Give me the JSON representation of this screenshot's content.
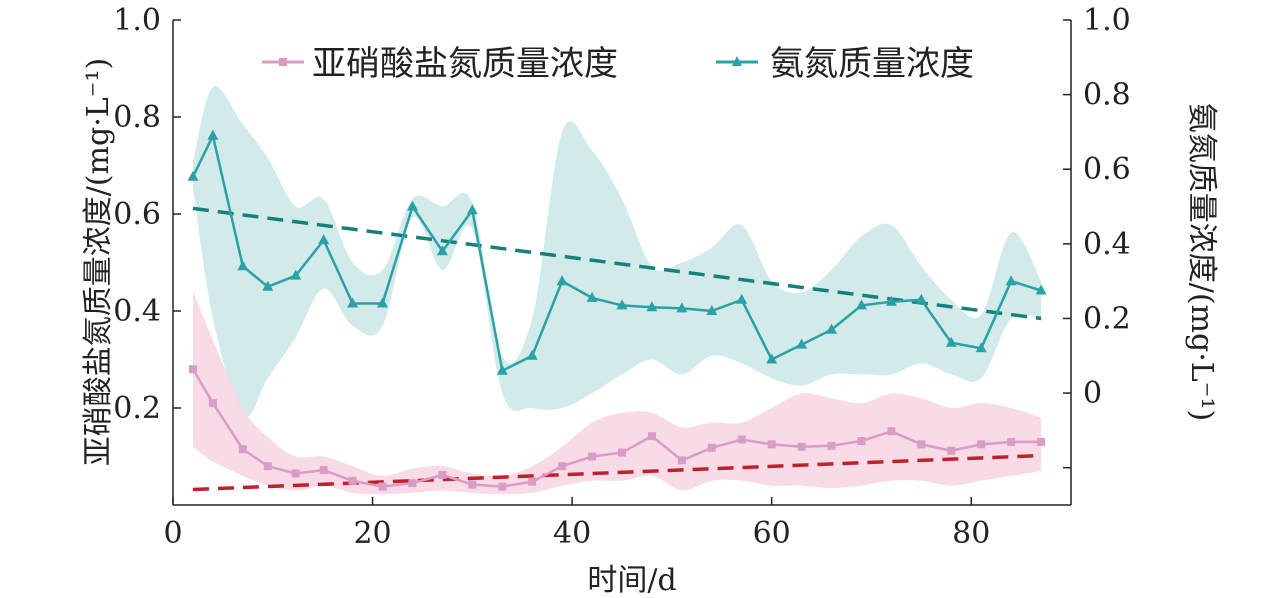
{
  "chart_data": {
    "type": "line",
    "xlabel": "时间/d",
    "ylabel_left": "亚硝酸盐氮质量浓度/(mg·L⁻¹)",
    "ylabel_right": "氨氮质量浓度/(mg·L⁻¹)",
    "xlim": [
      0,
      90
    ],
    "ylim_left": [
      0,
      1.0
    ],
    "ylim_right": [
      -0.3,
      1.0
    ],
    "x_ticks": [
      "0",
      "20",
      "40",
      "60",
      "80"
    ],
    "y_left_ticks": [
      "0.2",
      "0.4",
      "0.6",
      "0.8",
      "1.0"
    ],
    "y_right_ticks": [
      "0",
      "0.2",
      "0.4",
      "0.6",
      "0.8",
      "1.0"
    ],
    "legend_position": "top",
    "x": [
      2,
      4,
      7,
      9.5,
      12.3,
      15.1,
      18,
      21,
      24,
      27,
      30,
      33,
      36,
      39,
      42,
      45,
      48,
      51,
      54,
      57,
      60,
      63,
      66,
      69,
      72,
      75,
      78,
      81,
      84,
      87
    ],
    "series": [
      {
        "name": "亚硝酸盐氮质量浓度",
        "axis": "left",
        "color": "#d99cc4",
        "band_color": "#f8d7e6",
        "marker": "square",
        "values": [
          0.28,
          0.21,
          0.115,
          0.08,
          0.065,
          0.072,
          0.05,
          0.038,
          0.045,
          0.062,
          0.042,
          0.038,
          0.048,
          0.08,
          0.1,
          0.108,
          0.142,
          0.092,
          0.118,
          0.135,
          0.125,
          0.12,
          0.122,
          0.132,
          0.152,
          0.125,
          0.112,
          0.125,
          0.13,
          0.13
        ],
        "upper": [
          0.44,
          0.34,
          0.2,
          0.14,
          0.1,
          0.1,
          0.08,
          0.06,
          0.075,
          0.08,
          0.065,
          0.06,
          0.08,
          0.12,
          0.17,
          0.19,
          0.19,
          0.16,
          0.17,
          0.17,
          0.2,
          0.23,
          0.22,
          0.21,
          0.23,
          0.22,
          0.2,
          0.21,
          0.2,
          0.18
        ],
        "lower": [
          0.12,
          0.09,
          0.06,
          0.04,
          0.03,
          0.04,
          0.025,
          0.022,
          0.025,
          0.03,
          0.025,
          0.022,
          0.025,
          0.04,
          0.05,
          0.05,
          0.06,
          0.03,
          0.05,
          0.05,
          0.04,
          0.04,
          0.035,
          0.04,
          0.05,
          0.05,
          0.04,
          0.05,
          0.06,
          0.07
        ],
        "trend": [
          0.032,
          0.102
        ]
      },
      {
        "name": "氨氮质量浓度",
        "axis": "right",
        "color": "#2aa1a4",
        "band_color": "#cde8e8",
        "marker": "triangle",
        "values": [
          0.58,
          0.69,
          0.34,
          0.285,
          0.315,
          0.41,
          0.24,
          0.24,
          0.5,
          0.38,
          0.49,
          0.06,
          0.1,
          0.3,
          0.255,
          0.235,
          0.23,
          0.227,
          0.22,
          0.25,
          0.09,
          0.13,
          0.17,
          0.235,
          0.245,
          0.25,
          0.135,
          0.12,
          0.3,
          0.275
        ],
        "upper": [
          0.62,
          0.82,
          0.72,
          0.63,
          0.5,
          0.52,
          0.35,
          0.33,
          0.52,
          0.5,
          0.51,
          0.1,
          0.2,
          0.7,
          0.65,
          0.52,
          0.34,
          0.35,
          0.39,
          0.45,
          0.3,
          0.27,
          0.33,
          0.42,
          0.45,
          0.34,
          0.25,
          0.21,
          0.43,
          0.3
        ],
        "lower": [
          0.55,
          0.2,
          -0.06,
          0.04,
          0.15,
          0.28,
          0.18,
          0.18,
          0.47,
          0.33,
          0.44,
          0.0,
          -0.04,
          -0.04,
          0.0,
          0.05,
          0.09,
          0.05,
          0.1,
          0.08,
          0.04,
          0.02,
          0.05,
          0.05,
          0.05,
          0.08,
          0.05,
          0.04,
          0.2,
          0.2
        ]
      }
    ],
    "trend_right": [
      0.495,
      0.2
    ]
  },
  "legend": {
    "nitrite_label": "亚硝酸盐氮质量浓度",
    "ammonia_label": "氨氮质量浓度"
  },
  "trend_colors": {
    "nitrite": "#c0202a",
    "ammonia": "#15807e"
  }
}
